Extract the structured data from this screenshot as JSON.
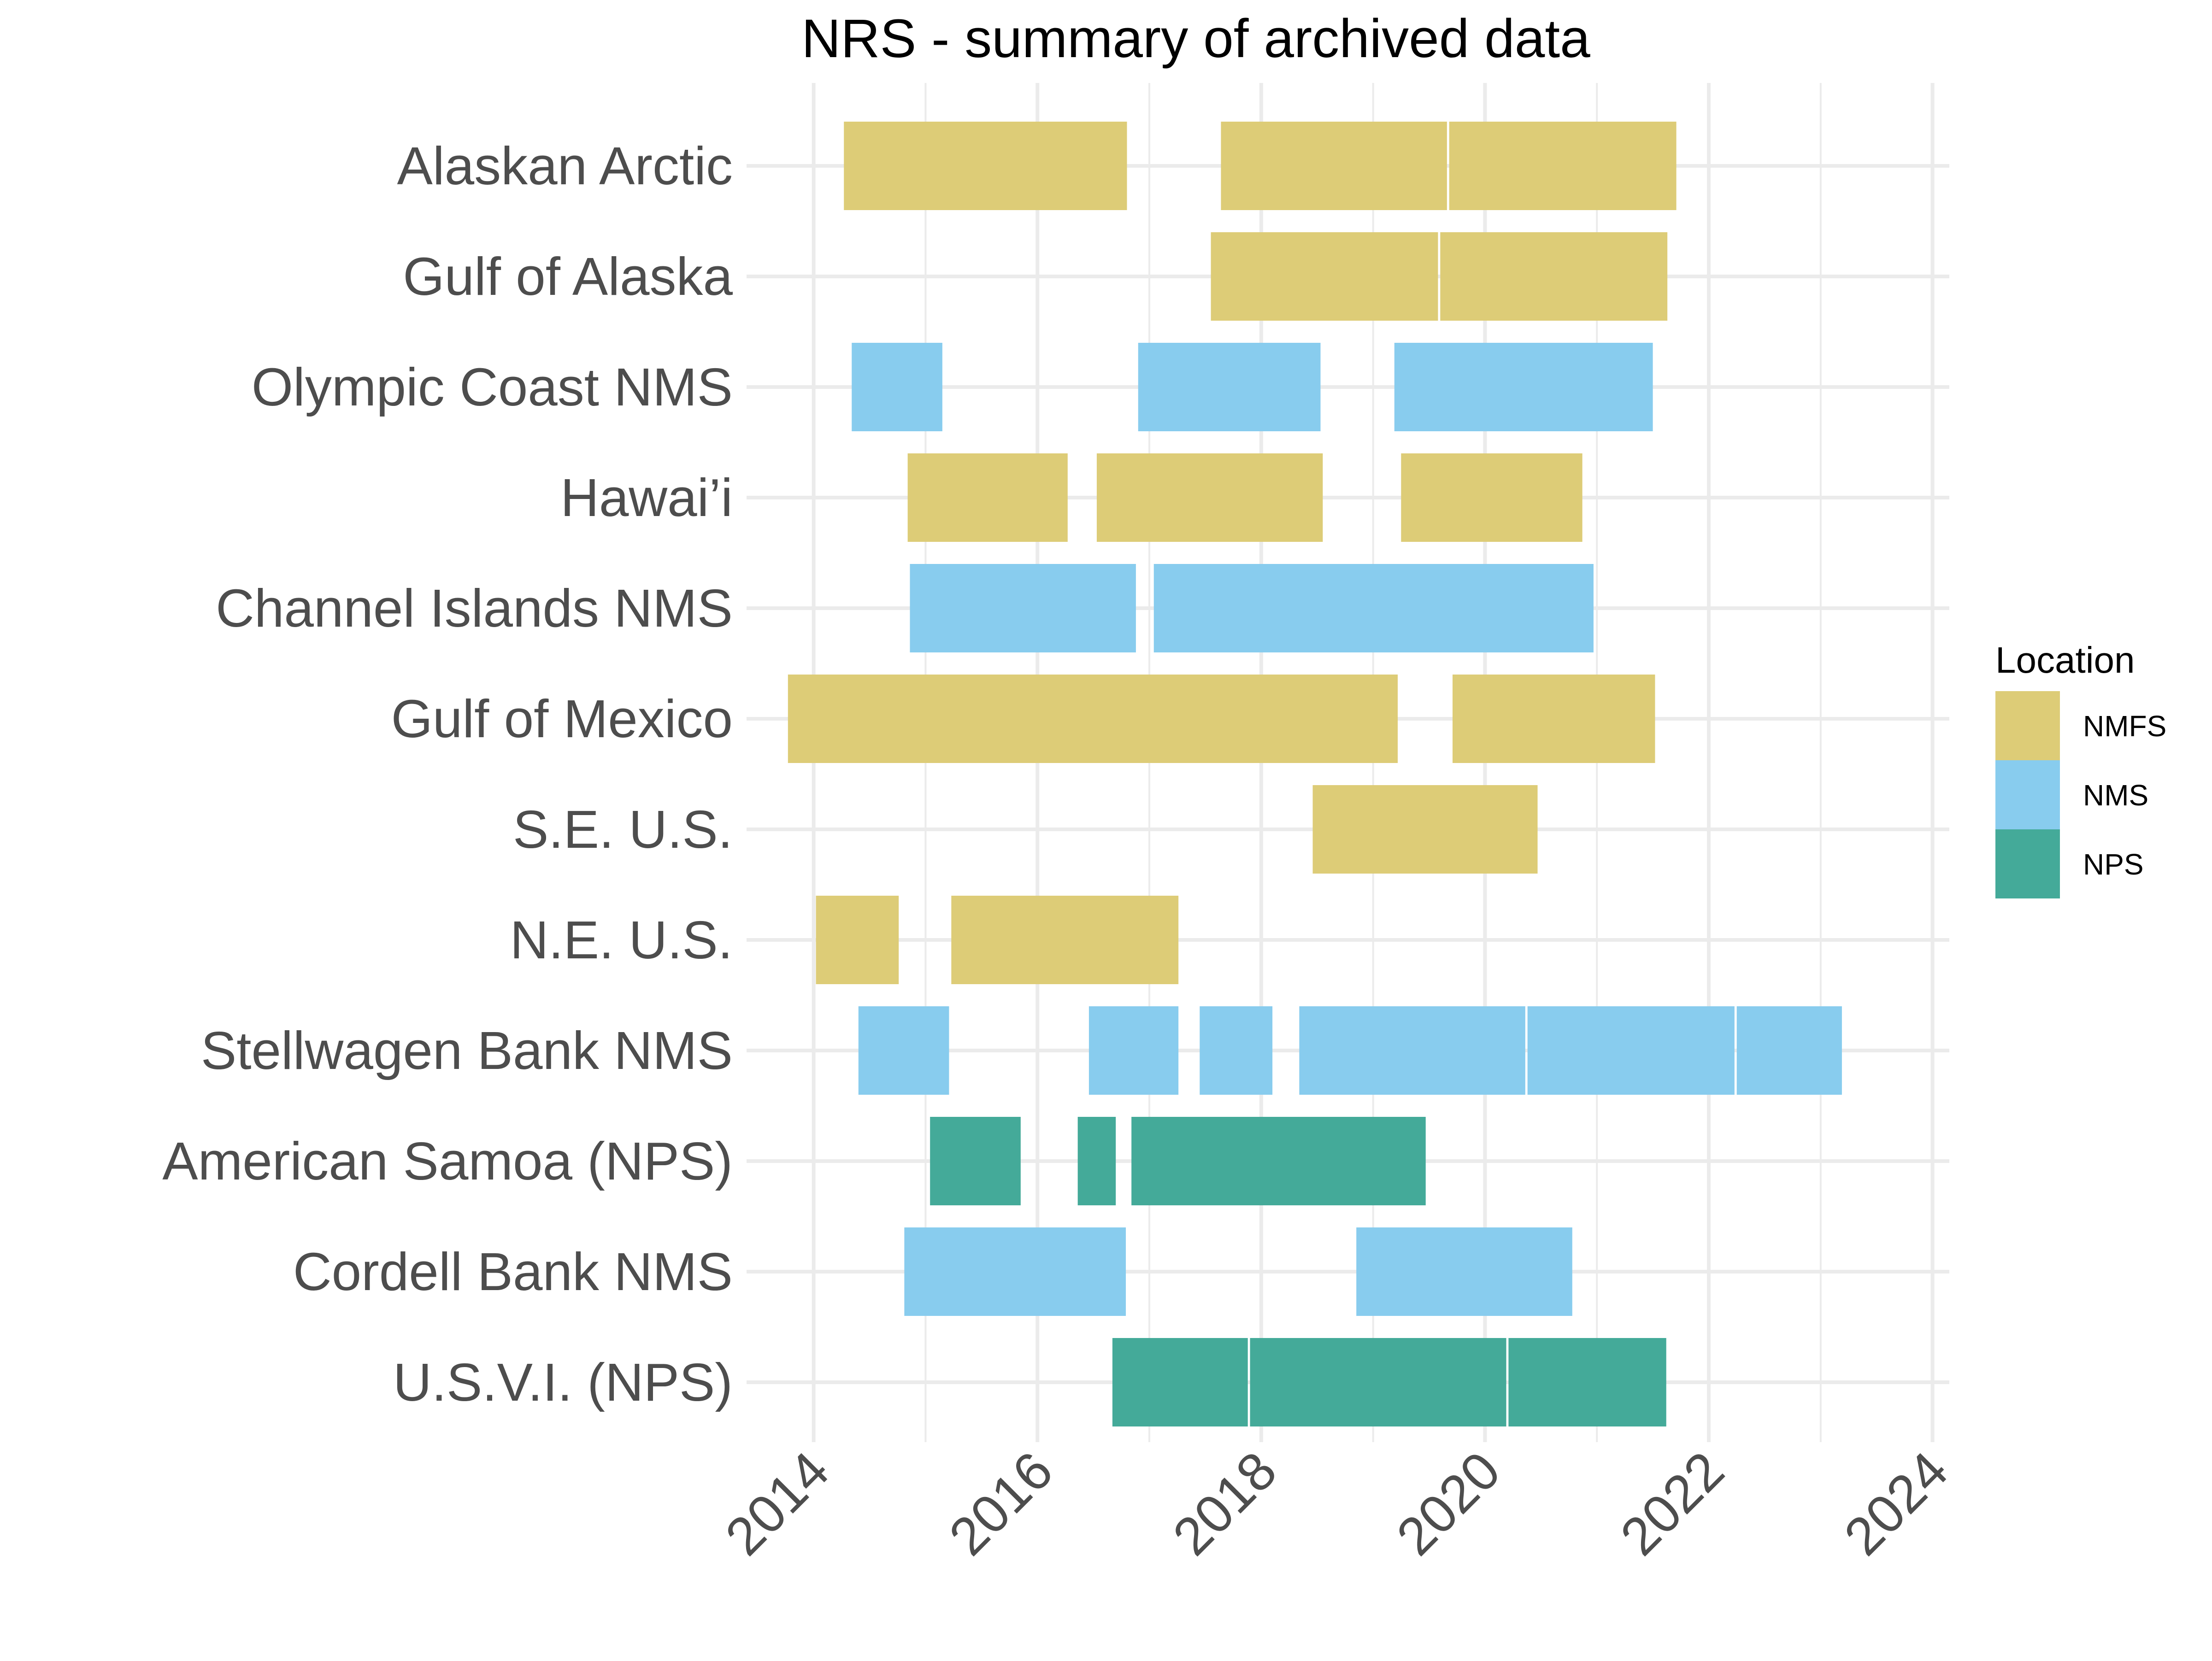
{
  "chart_data": {
    "type": "timeline",
    "title": "NRS - summary of archived data",
    "xlabel": "",
    "ylabel": "",
    "xlim": [
      2013.4,
      2024.15
    ],
    "xticks": [
      2014,
      2016,
      2018,
      2020,
      2022,
      2024
    ],
    "grid": true,
    "legend": {
      "title": "Location",
      "position": "right",
      "entries": [
        {
          "name": "NMFS",
          "color": "#DDCC77"
        },
        {
          "name": "NMS",
          "color": "#88CCEE"
        },
        {
          "name": "NPS",
          "color": "#44AA99"
        }
      ]
    },
    "categories": [
      "Alaskan Arctic",
      "Gulf of Alaska",
      "Olympic Coast NMS",
      "Hawai’i",
      "Channel Islands NMS",
      "Gulf of Mexico",
      "S.E. U.S.",
      "N.E. U.S.",
      "Stellwagen Bank NMS",
      "American Samoa (NPS)",
      "Cordell Bank NMS",
      "U.S.V.I. (NPS)"
    ],
    "segments": [
      {
        "category": "Alaskan Arctic",
        "location": "NMFS",
        "start": 2014.27,
        "end": 2016.8
      },
      {
        "category": "Alaskan Arctic",
        "location": "NMFS",
        "start": 2017.64,
        "end": 2019.66
      },
      {
        "category": "Alaskan Arctic",
        "location": "NMFS",
        "start": 2019.68,
        "end": 2021.71
      },
      {
        "category": "Gulf of Alaska",
        "location": "NMFS",
        "start": 2017.55,
        "end": 2019.58
      },
      {
        "category": "Gulf of Alaska",
        "location": "NMFS",
        "start": 2019.6,
        "end": 2021.63
      },
      {
        "category": "Olympic Coast NMS",
        "location": "NMS",
        "start": 2014.34,
        "end": 2015.15
      },
      {
        "category": "Olympic Coast NMS",
        "location": "NMS",
        "start": 2016.9,
        "end": 2018.53
      },
      {
        "category": "Olympic Coast NMS",
        "location": "NMS",
        "start": 2019.19,
        "end": 2021.5
      },
      {
        "category": "Hawai’i",
        "location": "NMFS",
        "start": 2014.84,
        "end": 2016.27
      },
      {
        "category": "Hawai’i",
        "location": "NMFS",
        "start": 2016.53,
        "end": 2018.55
      },
      {
        "category": "Hawai’i",
        "location": "NMFS",
        "start": 2019.25,
        "end": 2020.87
      },
      {
        "category": "Channel Islands NMS",
        "location": "NMS",
        "start": 2014.86,
        "end": 2016.88
      },
      {
        "category": "Channel Islands NMS",
        "location": "NMS",
        "start": 2017.04,
        "end": 2020.97
      },
      {
        "category": "Gulf of Mexico",
        "location": "NMFS",
        "start": 2013.77,
        "end": 2019.22
      },
      {
        "category": "Gulf of Mexico",
        "location": "NMFS",
        "start": 2019.71,
        "end": 2021.52
      },
      {
        "category": "S.E. U.S.",
        "location": "NMFS",
        "start": 2018.46,
        "end": 2020.47
      },
      {
        "category": "N.E. U.S.",
        "location": "NMFS",
        "start": 2014.02,
        "end": 2014.76
      },
      {
        "category": "N.E. U.S.",
        "location": "NMFS",
        "start": 2015.23,
        "end": 2017.26
      },
      {
        "category": "Stellwagen Bank NMS",
        "location": "NMS",
        "start": 2014.4,
        "end": 2015.21
      },
      {
        "category": "Stellwagen Bank NMS",
        "location": "NMS",
        "start": 2016.46,
        "end": 2017.26
      },
      {
        "category": "Stellwagen Bank NMS",
        "location": "NMS",
        "start": 2017.45,
        "end": 2018.1
      },
      {
        "category": "Stellwagen Bank NMS",
        "location": "NMS",
        "start": 2018.34,
        "end": 2020.36
      },
      {
        "category": "Stellwagen Bank NMS",
        "location": "NMS",
        "start": 2020.38,
        "end": 2022.23
      },
      {
        "category": "Stellwagen Bank NMS",
        "location": "NMS",
        "start": 2022.25,
        "end": 2023.19
      },
      {
        "category": "American Samoa (NPS)",
        "location": "NPS",
        "start": 2015.04,
        "end": 2015.85
      },
      {
        "category": "American Samoa (NPS)",
        "location": "NPS",
        "start": 2016.36,
        "end": 2016.7
      },
      {
        "category": "American Samoa (NPS)",
        "location": "NPS",
        "start": 2016.84,
        "end": 2019.47
      },
      {
        "category": "Cordell Bank NMS",
        "location": "NMS",
        "start": 2014.81,
        "end": 2016.79
      },
      {
        "category": "Cordell Bank NMS",
        "location": "NMS",
        "start": 2018.85,
        "end": 2020.78
      },
      {
        "category": "U.S.V.I. (NPS)",
        "location": "NPS",
        "start": 2016.67,
        "end": 2017.88
      },
      {
        "category": "U.S.V.I. (NPS)",
        "location": "NPS",
        "start": 2017.9,
        "end": 2020.19
      },
      {
        "category": "U.S.V.I. (NPS)",
        "location": "NPS",
        "start": 2020.21,
        "end": 2021.62
      }
    ]
  }
}
